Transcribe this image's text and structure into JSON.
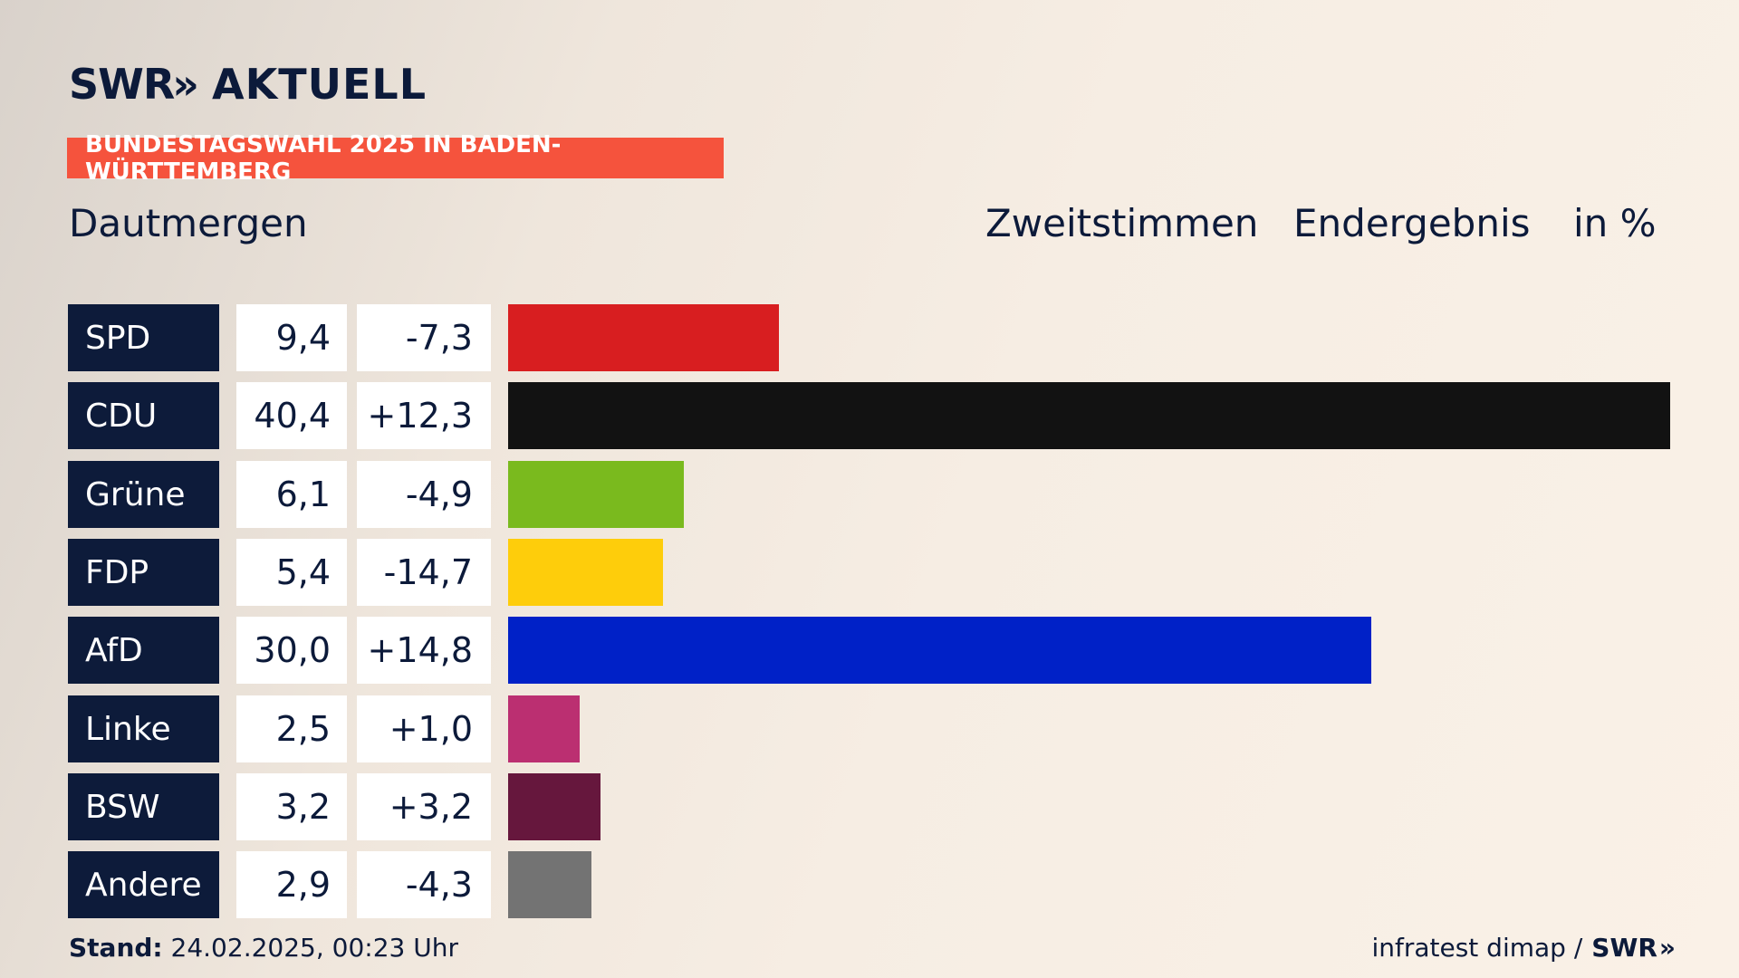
{
  "header": {
    "logo_swr": "SWR",
    "logo_chevrons": "»",
    "logo_aktuell": "AKTUELL",
    "banner": "BUNDESTAGSWAHL 2025 IN BADEN-WÜRTTEMBERG",
    "region": "Dautmergen",
    "label_1": "Zweitstimmen",
    "label_2": "Endergebnis",
    "label_3": "in %"
  },
  "footer": {
    "stand_label": "Stand:",
    "stand_value": "24.02.2025, 00:23 Uhr",
    "source": "infratest dimap /",
    "source_logo": "SWR",
    "source_chevrons": "»"
  },
  "colors": {
    "banner": "#f5533d",
    "party_box": "#0d1b3a",
    "text": "#0c1a3a"
  },
  "chart_data": {
    "type": "bar",
    "orientation": "horizontal",
    "categories": [
      "SPD",
      "CDU",
      "Grüne",
      "FDP",
      "AfD",
      "Linke",
      "BSW",
      "Andere"
    ],
    "values": [
      9.4,
      40.4,
      6.1,
      5.4,
      30.0,
      2.5,
      3.2,
      2.9
    ],
    "value_labels": [
      "9,4",
      "40,4",
      "6,1",
      "5,4",
      "30,0",
      "2,5",
      "3,2",
      "2,9"
    ],
    "changes": [
      -7.3,
      12.3,
      -4.9,
      -14.7,
      14.8,
      1.0,
      3.2,
      -4.3
    ],
    "change_labels": [
      "-7,3",
      "+12,3",
      "-4,9",
      "-14,7",
      "+14,8",
      "+1,0",
      "+3,2",
      "-4,3"
    ],
    "bar_colors": [
      "#d81e20",
      "#121212",
      "#7aba1e",
      "#fecd0b",
      "#0021c7",
      "#bb2f71",
      "#66173d",
      "#737373"
    ],
    "xlim": [
      0,
      40.4
    ]
  }
}
